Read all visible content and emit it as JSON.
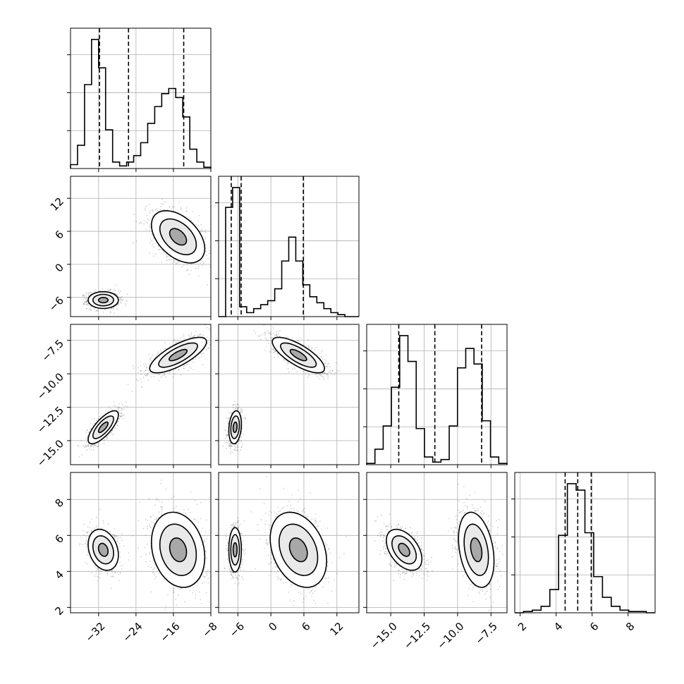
{
  "chart_data": {
    "type": "corner",
    "grid": true,
    "parameters": [
      {
        "index": 0,
        "range": [
          -38,
          -8
        ],
        "ticks": [
          -32,
          -24,
          -16,
          -8
        ],
        "tick_labels": [
          "−32",
          "−24",
          "−16",
          "−8"
        ],
        "modes": [
          {
            "mean": -31.0,
            "sd": 1.6,
            "weight": 0.5
          },
          {
            "mean": -15.0,
            "sd": 3.0,
            "weight": 0.5
          }
        ],
        "quantiles": [
          -31.8,
          -25.6,
          -13.8
        ],
        "hist_counts": [
          0.03,
          0.18,
          0.65,
          1.0,
          0.78,
          0.3,
          0.05,
          0.02,
          0.05,
          0.1,
          0.2,
          0.35,
          0.48,
          0.58,
          0.62,
          0.55,
          0.4,
          0.15,
          0.05,
          0.01
        ]
      },
      {
        "index": 1,
        "range": [
          -9.5,
          16
        ],
        "ticks": [
          -6,
          0,
          6,
          12
        ],
        "tick_labels": [
          "−6",
          "0",
          "6",
          "12"
        ],
        "modes": [
          {
            "mean": -6.5,
            "sd": 0.8,
            "weight": 0.5
          },
          {
            "mean": 5.0,
            "sd": 2.2,
            "weight": 0.5
          }
        ],
        "quantiles": [
          -7.2,
          -5.4,
          5.9
        ],
        "hist_counts": [
          0.0,
          0.55,
          0.65,
          0.05,
          0.02,
          0.04,
          0.06,
          0.08,
          0.14,
          0.28,
          0.4,
          0.28,
          0.16,
          0.1,
          0.07,
          0.04,
          0.02,
          0.01,
          0.0,
          0.0
        ]
      },
      {
        "index": 2,
        "range": [
          -16.8,
          -6.3
        ],
        "ticks": [
          -15.0,
          -12.5,
          -10.0,
          -7.5
        ],
        "tick_labels": [
          "−15.0",
          "−12.5",
          "−10.0",
          "−7.5"
        ],
        "modes": [
          {
            "mean": -14.0,
            "sd": 0.6,
            "weight": 0.5
          },
          {
            "mean": -8.6,
            "sd": 0.7,
            "weight": 0.5
          }
        ],
        "quantiles": [
          -14.4,
          -11.7,
          -8.2
        ],
        "hist_counts": [
          0.01,
          0.12,
          0.3,
          0.6,
          1.0,
          0.8,
          0.28,
          0.06,
          0.02,
          0.04,
          0.3,
          0.75,
          0.9,
          0.78,
          0.34,
          0.06,
          0.01
        ]
      },
      {
        "index": 3,
        "range": [
          1.7,
          9.5
        ],
        "ticks": [
          2,
          4,
          6,
          8
        ],
        "tick_labels": [
          "2",
          "4",
          "6",
          "8"
        ],
        "modes": [
          {
            "mean": 5.2,
            "sd": 0.75,
            "weight": 1.0
          }
        ],
        "quantiles": [
          4.5,
          5.2,
          5.95
        ],
        "hist_counts": [
          0.0,
          0.01,
          0.02,
          0.05,
          0.18,
          0.6,
          1.0,
          0.95,
          0.62,
          0.28,
          0.12,
          0.05,
          0.02,
          0.01,
          0.01,
          0.0
        ]
      }
    ],
    "pair_clusters": {
      "1-0": [
        {
          "a": -31.0,
          "sa": 1.7,
          "b": -6.5,
          "sb": 0.8,
          "rho": 0.0
        },
        {
          "a": -15.0,
          "sa": 3.0,
          "b": 5.0,
          "sb": 2.5,
          "rho": -0.45
        }
      ],
      "2-0": [
        {
          "a": -31.0,
          "sa": 1.7,
          "b": -14.0,
          "sb": 0.65,
          "rho": 0.75
        },
        {
          "a": -15.0,
          "sa": 3.2,
          "b": -8.6,
          "sb": 0.7,
          "rho": 0.75
        }
      ],
      "2-1": [
        {
          "a": -6.5,
          "sa": 0.6,
          "b": -14.0,
          "sb": 0.65,
          "rho": 0.2
        },
        {
          "a": 5.0,
          "sa": 2.5,
          "b": -8.6,
          "sb": 0.7,
          "rho": -0.75
        }
      ],
      "3-0": [
        {
          "a": -31.0,
          "sa": 1.7,
          "b": 5.2,
          "sb": 0.6,
          "rho": -0.25
        },
        {
          "a": -15.0,
          "sa": 3.0,
          "b": 5.2,
          "sb": 1.1,
          "rho": -0.2
        }
      ],
      "3-1": [
        {
          "a": -6.5,
          "sa": 0.6,
          "b": 5.2,
          "sb": 0.65,
          "rho": 0.0
        },
        {
          "a": 5.0,
          "sa": 2.7,
          "b": 5.2,
          "sb": 1.1,
          "rho": -0.3
        }
      ],
      "3-2": [
        {
          "a": -14.0,
          "sa": 0.7,
          "b": 5.2,
          "sb": 0.6,
          "rho": -0.45
        },
        {
          "a": -8.6,
          "sa": 0.7,
          "b": 5.2,
          "sb": 1.1,
          "rho": -0.3
        }
      ]
    }
  }
}
